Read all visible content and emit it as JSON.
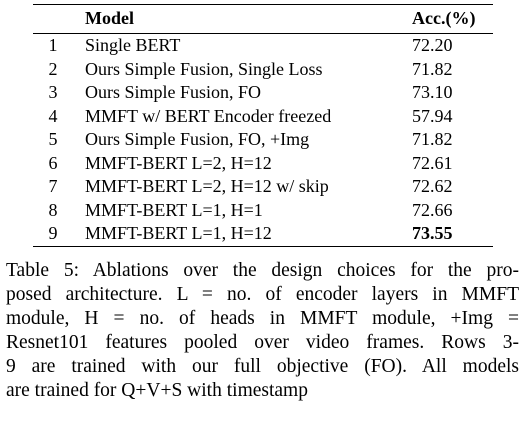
{
  "table": {
    "header": {
      "index": "",
      "model": "Model",
      "acc": "Acc.(%)"
    },
    "rows": [
      [
        "1",
        "Single BERT",
        "72.20"
      ],
      [
        "2",
        "Ours Simple Fusion, Single Loss",
        "71.82"
      ],
      [
        "3",
        "Ours Simple Fusion, FO",
        "73.10"
      ],
      [
        "4",
        "MMFT w/ BERT Encoder freezed",
        "57.94"
      ],
      [
        "5",
        "Ours Simple Fusion, FO, +Img",
        "71.82"
      ],
      [
        "6",
        "MMFT-BERT L=2, H=12",
        "72.61"
      ],
      [
        "7",
        "MMFT-BERT L=2, H=12 w/ skip",
        "72.62"
      ],
      [
        "8",
        "MMFT-BERT L=1, H=1",
        "72.66"
      ],
      [
        "9",
        "MMFT-BERT L=1, H=12",
        "73.55"
      ]
    ]
  },
  "caption": {
    "lines": [
      "Table 5: Ablations over the design choices for the pro-",
      "posed architecture. L = no. of encoder layers in MMFT",
      "module, H = no. of heads in MMFT module, +Img =",
      "Resnet101 features pooled over video frames. Rows 3-",
      "9 are trained with our full objective (FO). All models",
      "are trained for Q+V+S with timestamp"
    ]
  }
}
